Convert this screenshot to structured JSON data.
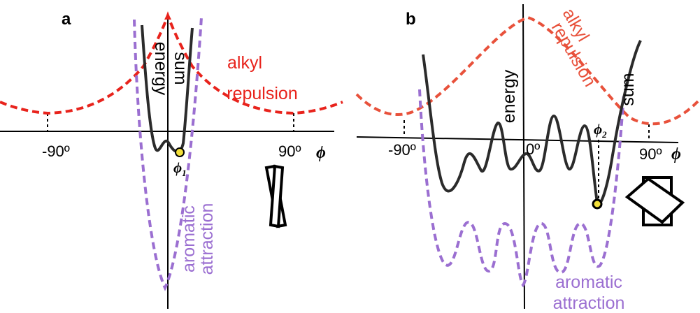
{
  "colors": {
    "alkyl": "#e8231c",
    "alkyl_b": "#e8513b",
    "aromatic": "#9b6fd1",
    "sum": "#2b2b2b",
    "axis": "#000000",
    "marker": "#f2df3a"
  },
  "panel_a": {
    "letter": "a",
    "tick_neg": "-90º",
    "tick_pos": "90º",
    "axis_symbol": "ϕ",
    "minimum_symbol": "ϕ",
    "minimum_subscript": "1",
    "energy_label": "energy",
    "sum_label": "sum",
    "alkyl_line1": "alkyl",
    "alkyl_line2": "repulsion",
    "aromatic_line1": "aromatic",
    "aromatic_line2": "attraction"
  },
  "panel_b": {
    "letter": "b",
    "tick_neg": "-90º",
    "tick_zero": "0º",
    "tick_pos": "90º",
    "axis_symbol": "ϕ",
    "minimum_symbol": "ϕ",
    "minimum_subscript": "2",
    "energy_label": "energy",
    "sum_label": "sum",
    "alkyl_line1": "alkyl",
    "alkyl_line2": "repulsion",
    "aromatic_line1": "aromatic",
    "aromatic_line2": "attraction"
  }
}
